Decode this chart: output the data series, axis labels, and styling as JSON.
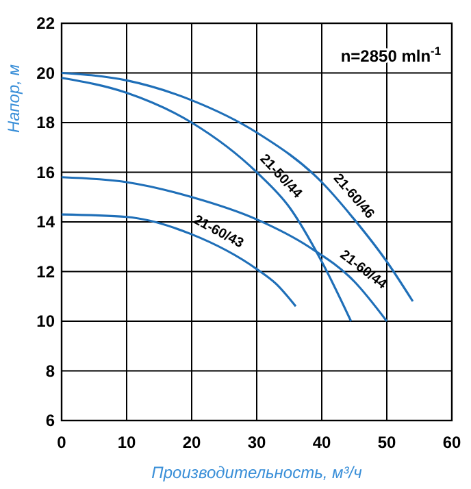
{
  "chart_data": {
    "type": "line",
    "xlabel": "Производительность, м³/ч",
    "ylabel": "Напор, м",
    "annotations": [
      "n=2850 mln$^{-1}$"
    ],
    "xlim": [
      0,
      60
    ],
    "xticks": [
      0,
      10,
      20,
      30,
      40,
      50,
      60
    ],
    "ylim": [
      6,
      22
    ],
    "yticks": [
      6,
      8,
      10,
      12,
      14,
      16,
      18,
      20,
      22
    ],
    "grid": true,
    "legend": false,
    "marker": "none",
    "line_style": "solid",
    "series": [
      {
        "name": "21-60/46",
        "color": "#1f6fb8",
        "x": [
          0,
          10,
          20,
          30,
          40,
          45,
          50,
          54
        ],
        "values": [
          20,
          19.7,
          18.9,
          17.6,
          15.6,
          14.1,
          12.4,
          10.8
        ]
      },
      {
        "name": "21-50/44",
        "color": "#1f6fb8",
        "x": [
          0,
          10,
          20,
          30,
          35,
          40,
          44.5
        ],
        "values": [
          19.8,
          19.2,
          18,
          16,
          14.6,
          12.4,
          10
        ]
      },
      {
        "name": "21-60/44",
        "color": "#1f6fb8",
        "x": [
          0,
          10,
          20,
          30,
          38,
          45,
          50
        ],
        "values": [
          15.8,
          15.6,
          15,
          14.1,
          13,
          11.6,
          10
        ]
      },
      {
        "name": "21-60/43",
        "color": "#1f6fb8",
        "x": [
          0,
          10,
          20,
          30,
          33,
          36
        ],
        "values": [
          14.3,
          14.2,
          13.5,
          12.1,
          11.5,
          10.6
        ]
      }
    ]
  }
}
